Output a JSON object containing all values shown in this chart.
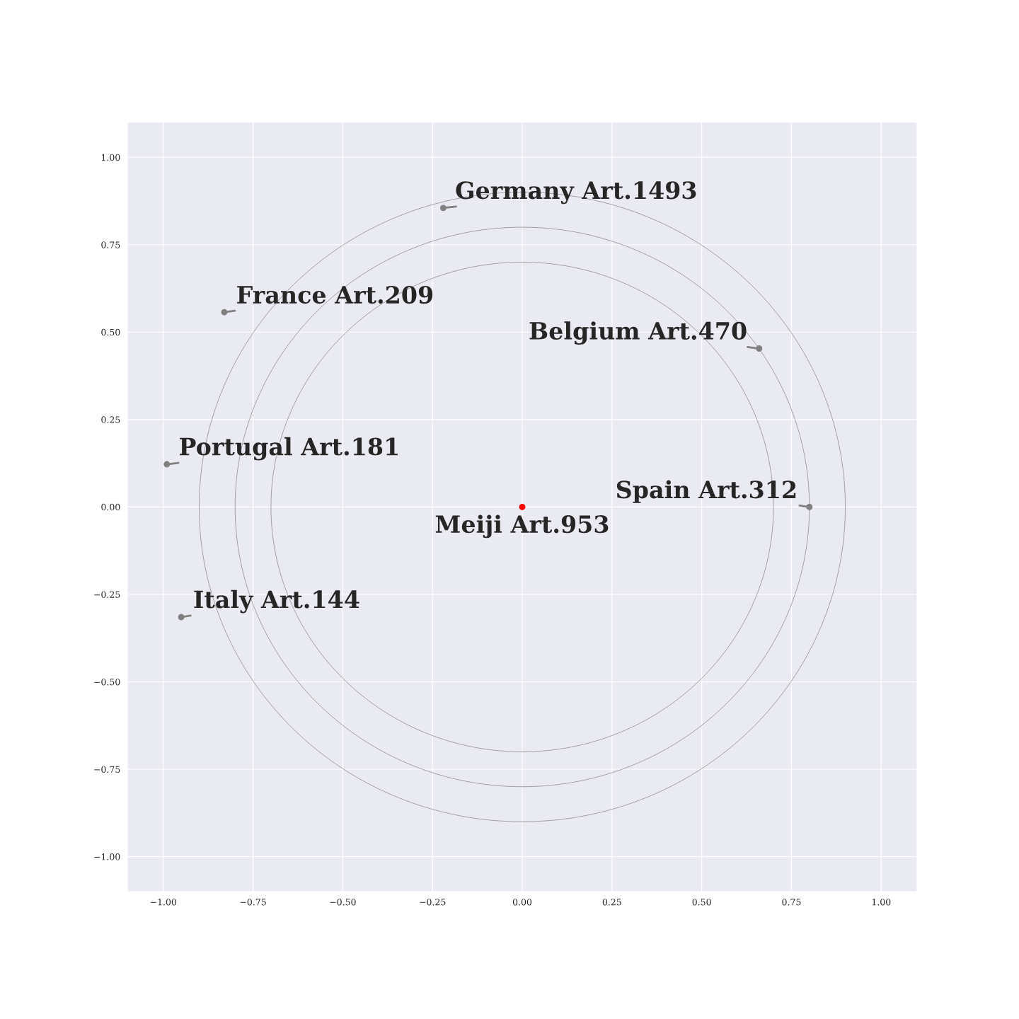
{
  "chart_data": {
    "type": "scatter",
    "xlim": [
      -1.1,
      1.1
    ],
    "ylim": [
      -1.1,
      1.1
    ],
    "xticks": [
      {
        "value": -1,
        "label": "−1.00"
      },
      {
        "value": -0.75,
        "label": "−0.75"
      },
      {
        "value": -0.5,
        "label": "−0.50"
      },
      {
        "value": -0.25,
        "label": "−0.25"
      },
      {
        "value": 0,
        "label": "0.00"
      },
      {
        "value": 0.25,
        "label": "0.25"
      },
      {
        "value": 0.5,
        "label": "0.50"
      },
      {
        "value": 0.75,
        "label": "0.75"
      },
      {
        "value": 1,
        "label": "1.00"
      }
    ],
    "yticks": [
      {
        "value": -1,
        "label": "−1.00"
      },
      {
        "value": -0.75,
        "label": "−0.75"
      },
      {
        "value": -0.5,
        "label": "−0.50"
      },
      {
        "value": -0.25,
        "label": "−0.25"
      },
      {
        "value": 0,
        "label": "0.00"
      },
      {
        "value": 0.25,
        "label": "0.25"
      },
      {
        "value": 0.5,
        "label": "0.50"
      },
      {
        "value": 0.75,
        "label": "0.75"
      },
      {
        "value": 1,
        "label": "1.00"
      }
    ],
    "grid": true,
    "marker": "circle",
    "series": [
      {
        "x": [
          0,
          -0.22,
          -0.83,
          0.66,
          -0.99,
          0.8,
          -0.95
        ],
        "values": [
          0,
          0.855,
          0.557,
          0.453,
          0.122,
          0,
          -0.315
        ],
        "colors": [
          "#ff0000",
          "#808080",
          "#808080",
          "#808080",
          "#808080",
          "#808080",
          "#808080"
        ]
      }
    ],
    "annotations": [
      {
        "text": "Meiji Art.953",
        "x": 0,
        "y": 0
      },
      {
        "text": "Germany Art.1493",
        "x": -0.22,
        "y": 0.855
      },
      {
        "text": "France Art.209",
        "x": -0.83,
        "y": 0.557
      },
      {
        "text": "Belgium Art.470",
        "x": 0.66,
        "y": 0.453
      },
      {
        "text": "Portugal Art.181",
        "x": -0.99,
        "y": 0.122
      },
      {
        "text": "Spain Art.312",
        "x": 0.8,
        "y": 0
      },
      {
        "text": "Italy Art.144",
        "x": -0.95,
        "y": -0.315
      }
    ]
  }
}
